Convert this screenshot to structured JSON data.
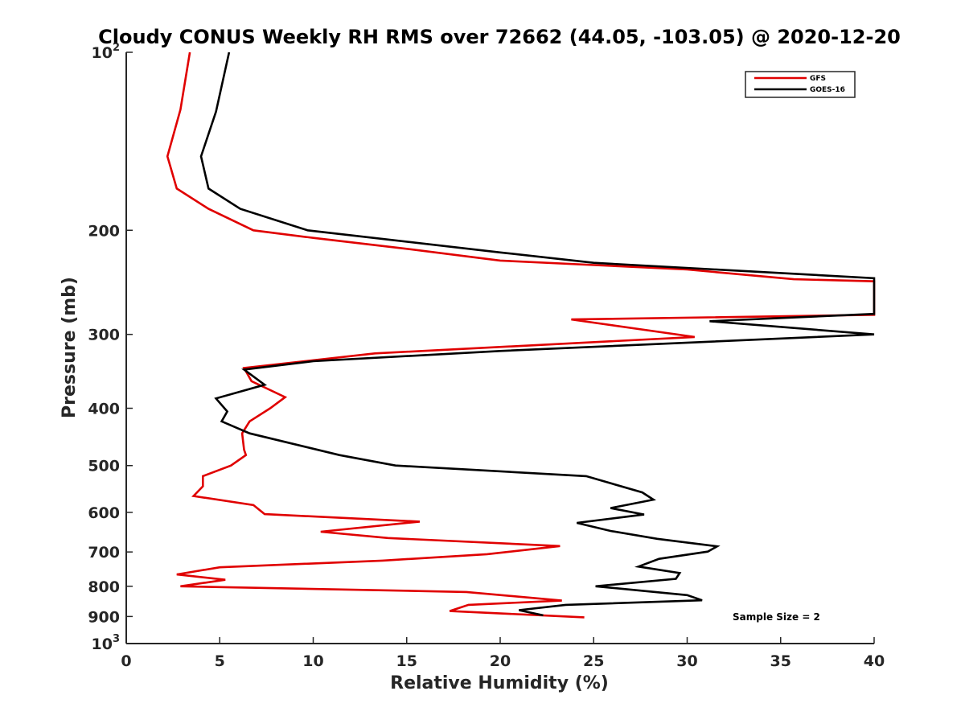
{
  "chart_data": {
    "type": "line",
    "title": "Cloudy CONUS Weekly RH RMS over 72662 (44.05, -103.05) @ 2020-12-20",
    "xlabel": "Relative Humidity (%)",
    "ylabel": "Pressure (mb)",
    "xlim": [
      0,
      40
    ],
    "ylim": [
      100,
      1000
    ],
    "y_scale": "log",
    "y_reversed": true,
    "xticks": [
      0,
      5,
      10,
      15,
      20,
      25,
      30,
      35,
      40
    ],
    "yticks": [
      {
        "value": 100,
        "base": "10",
        "exp": "2"
      },
      {
        "value": 200,
        "label": "200"
      },
      {
        "value": 300,
        "label": "300"
      },
      {
        "value": 400,
        "label": "400"
      },
      {
        "value": 500,
        "label": "500"
      },
      {
        "value": 600,
        "label": "600"
      },
      {
        "value": 700,
        "label": "700"
      },
      {
        "value": 800,
        "label": "800"
      },
      {
        "value": 900,
        "label": "900"
      },
      {
        "value": 1000,
        "base": "10",
        "exp": "3"
      }
    ],
    "grid": false,
    "legend_position": "top-right",
    "annotation": "Sample Size = 2",
    "series": [
      {
        "name": "GFS",
        "color": "#e00000",
        "points": [
          [
            3.4,
            100
          ],
          [
            2.9,
            125
          ],
          [
            2.2,
            150
          ],
          [
            2.7,
            170
          ],
          [
            4.4,
            184
          ],
          [
            6.8,
            200
          ],
          [
            10.0,
            206
          ],
          [
            15.0,
            215
          ],
          [
            20.0,
            225
          ],
          [
            30.0,
            233
          ],
          [
            35.7,
            242
          ],
          [
            40.0,
            244
          ],
          [
            40.0,
            278
          ],
          [
            23.8,
            283
          ],
          [
            30.4,
            303
          ],
          [
            13.3,
            323
          ],
          [
            6.3,
            342
          ],
          [
            6.7,
            360
          ],
          [
            8.5,
            383
          ],
          [
            7.7,
            400
          ],
          [
            6.6,
            421
          ],
          [
            6.2,
            441
          ],
          [
            6.3,
            470
          ],
          [
            6.4,
            480
          ],
          [
            5.6,
            500
          ],
          [
            4.1,
            521
          ],
          [
            4.1,
            542
          ],
          [
            3.6,
            563
          ],
          [
            6.8,
            583
          ],
          [
            7.4,
            604
          ],
          [
            15.7,
            622
          ],
          [
            10.4,
            647
          ],
          [
            14.0,
            663
          ],
          [
            23.2,
            684
          ],
          [
            19.3,
            706
          ],
          [
            13.7,
            724
          ],
          [
            5.0,
            743
          ],
          [
            2.7,
            764
          ],
          [
            5.3,
            780
          ],
          [
            2.9,
            800
          ],
          [
            18.2,
            818
          ],
          [
            23.3,
            846
          ],
          [
            18.3,
            860
          ],
          [
            17.3,
            881
          ],
          [
            24.5,
            903
          ]
        ]
      },
      {
        "name": "GOES-16",
        "color": "#000000",
        "points": [
          [
            5.5,
            100
          ],
          [
            4.8,
            126
          ],
          [
            4.0,
            150
          ],
          [
            4.4,
            170
          ],
          [
            6.1,
            184
          ],
          [
            9.7,
            200
          ],
          [
            20.0,
            218
          ],
          [
            25.0,
            227
          ],
          [
            40.0,
            241
          ],
          [
            40.0,
            277
          ],
          [
            31.2,
            285
          ],
          [
            40.0,
            300
          ],
          [
            20.0,
            320
          ],
          [
            10.0,
            333
          ],
          [
            6.3,
            344
          ],
          [
            7.4,
            365
          ],
          [
            4.8,
            385
          ],
          [
            5.4,
            405
          ],
          [
            5.1,
            421
          ],
          [
            6.6,
            441
          ],
          [
            11.4,
            480
          ],
          [
            14.4,
            500
          ],
          [
            24.6,
            521
          ],
          [
            27.6,
            555
          ],
          [
            28.2,
            571
          ],
          [
            25.9,
            590
          ],
          [
            27.7,
            605
          ],
          [
            24.1,
            625
          ],
          [
            25.9,
            645
          ],
          [
            28.4,
            665
          ],
          [
            31.6,
            685
          ],
          [
            31.1,
            699
          ],
          [
            28.5,
            719
          ],
          [
            27.4,
            741
          ],
          [
            29.6,
            760
          ],
          [
            29.4,
            777
          ],
          [
            25.1,
            800
          ],
          [
            30.0,
            828
          ],
          [
            30.8,
            845
          ],
          [
            23.5,
            860
          ],
          [
            21.0,
            878
          ],
          [
            22.3,
            896
          ]
        ]
      }
    ]
  }
}
